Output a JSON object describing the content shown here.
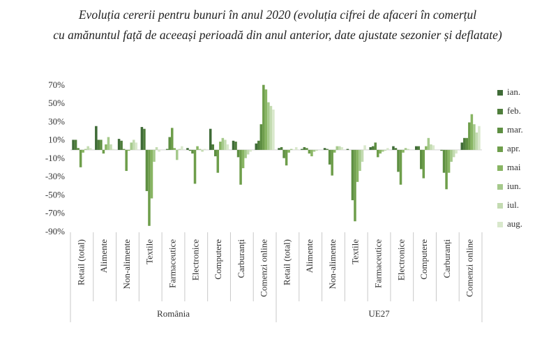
{
  "chart_data": {
    "type": "bar",
    "title": [
      "Evoluția cererii pentru bunuri în anul 2020 (evoluția cifrei de afaceri în comerțul",
      "cu amănuntul față de aceeași perioadă din anul anterior, date ajustate sezonier și deflatate)"
    ],
    "groups": [
      {
        "name": "România",
        "categories": [
          "Retail (total)",
          "Alimente",
          "Non-alimente",
          "Textile",
          "Farmaceutice",
          "Electronice",
          "Computere",
          "Carburanți",
          "Comenzi online"
        ]
      },
      {
        "name": "UE27",
        "categories": [
          "Retail (total)",
          "Alimente",
          "Non-alimente",
          "Textile",
          "Farmaceutice",
          "Electronice",
          "Computere",
          "Carburanți",
          "Comenzi online"
        ]
      }
    ],
    "series": [
      {
        "name": "ian.",
        "color": "#3f6b37",
        "values": [
          11,
          26,
          12,
          25,
          0,
          2,
          23,
          10,
          7,
          2,
          1,
          2,
          1,
          3,
          4,
          4,
          0,
          8
        ]
      },
      {
        "name": "feb.",
        "color": "#4f7e3c",
        "values": [
          11,
          11,
          10,
          23,
          1,
          -1,
          6,
          9,
          10,
          3,
          3,
          1,
          0,
          4,
          2,
          4,
          -1,
          13
        ]
      },
      {
        "name": "mar.",
        "color": "#5e8f42",
        "values": [
          2,
          11,
          1,
          -45,
          14,
          -4,
          -7,
          -8,
          28,
          -9,
          2,
          -16,
          -55,
          8,
          -24,
          -21,
          -25,
          13
        ]
      },
      {
        "name": "apr.",
        "color": "#6e9e4b",
        "values": [
          -19,
          -4,
          -23,
          -83,
          24,
          -37,
          -25,
          -38,
          71,
          -17,
          -4,
          -28,
          -78,
          -8,
          -38,
          -31,
          -43,
          30
        ]
      },
      {
        "name": "mai",
        "color": "#88b563",
        "values": [
          -3,
          6,
          -1,
          -53,
          2,
          4,
          9,
          -20,
          66,
          -3,
          -7,
          -3,
          -35,
          -4,
          -3,
          4,
          -25,
          39
        ]
      },
      {
        "name": "iun.",
        "color": "#a5c98b",
        "values": [
          1,
          14,
          8,
          -13,
          -11,
          1,
          13,
          -9,
          52,
          1,
          -2,
          4,
          -23,
          -2,
          2,
          13,
          -13,
          28
        ]
      },
      {
        "name": "iul.",
        "color": "#c3dbb1",
        "values": [
          4,
          6,
          11,
          3,
          1,
          -2,
          11,
          -5,
          48,
          0,
          -1,
          4,
          -13,
          -1,
          1,
          6,
          -8,
          19
        ]
      },
      {
        "name": "aug.",
        "color": "#d9e8cc",
        "values": [
          2,
          1,
          8,
          -2,
          4,
          1,
          6,
          -2,
          44,
          3,
          0,
          3,
          5,
          2,
          0,
          5,
          -4,
          26
        ]
      }
    ],
    "ylim": [
      -90,
      70
    ],
    "yticks": [
      {
        "value": -90,
        "label": "-90%"
      },
      {
        "value": -70,
        "label": "-70%"
      },
      {
        "value": -50,
        "label": "-50%"
      },
      {
        "value": -30,
        "label": "-30%"
      },
      {
        "value": -10,
        "label": "-10%"
      },
      {
        "value": 10,
        "label": "10%"
      },
      {
        "value": 30,
        "label": "30%"
      },
      {
        "value": 50,
        "label": "50%"
      },
      {
        "value": 70,
        "label": "70%"
      }
    ],
    "legend": "right"
  }
}
